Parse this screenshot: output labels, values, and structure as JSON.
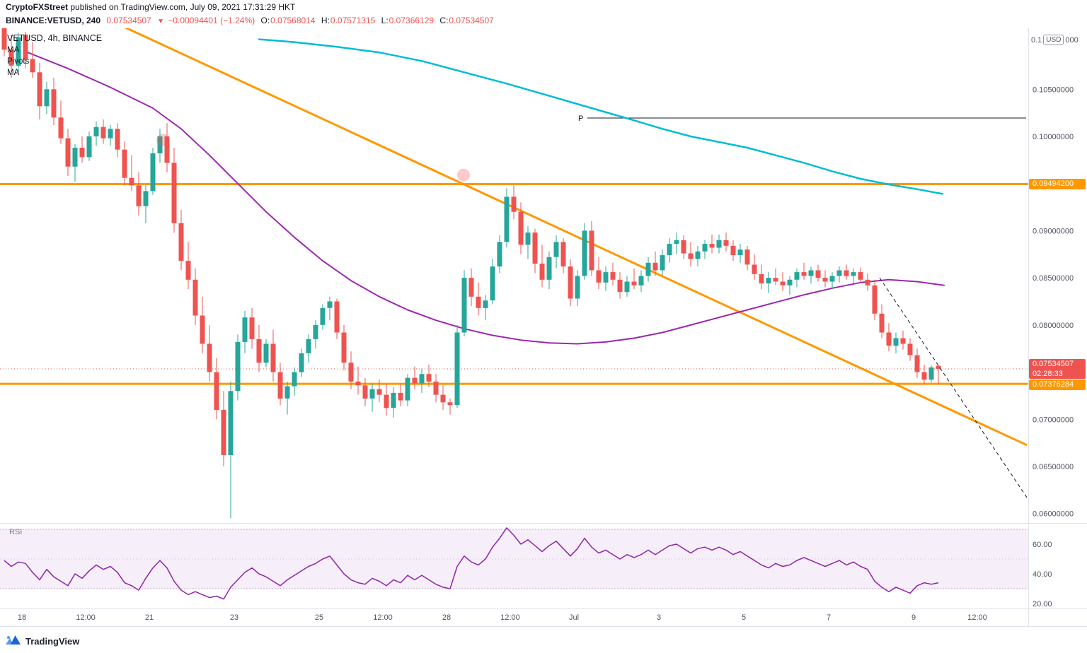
{
  "attribution": {
    "author": "CryptoFXStreet",
    "rest": " published on TradingView.com, July 09, 2021 17:31:29 HKT"
  },
  "symbol_bar": {
    "symbol": "BINANCE:VETUSD, 240",
    "last": "0.07534507",
    "arrow": "▼",
    "change": "−0.00094401 (−1.24%)",
    "o_label": "O:",
    "o": "0.07568014",
    "h_label": "H:",
    "h": "0.07571315",
    "l_label": "L:",
    "l": "0.07366129",
    "c_label": "C:",
    "c": "0.07534507"
  },
  "legend": {
    "title": "VETUSD, 4h, BINANCE",
    "items": [
      "MA",
      "Pivots",
      "MA"
    ]
  },
  "axis_chip": {
    "left": "0.1",
    "unit": "USD",
    "right": "000"
  },
  "badges": {
    "resistance": "0.09494200",
    "last_price": "0.07534507",
    "countdown": "02:28:33",
    "support": "0.07376284"
  },
  "rsi": {
    "label": "RSI"
  },
  "footer": {
    "brand": "TradingView"
  },
  "colors": {
    "up": "#26a69a",
    "down": "#ef5350",
    "cyan": "#00bcd4",
    "purple": "#9c27b0",
    "orange": "#ff9800",
    "rsi": "#8e24aa",
    "axis_text": "#50535e",
    "text": "#131722"
  },
  "chart_data": {
    "type": "candlestick",
    "symbol": "BINANCE:VETUSD",
    "interval": "4h",
    "title": "VETUSD, 4h, BINANCE",
    "first_index": -3,
    "first_candle_time": "2021-06-17 12:00",
    "candles": [
      [
        0.1118,
        0.1125,
        0.1085,
        0.1092
      ],
      [
        0.1092,
        0.1108,
        0.1062,
        0.1075
      ],
      [
        0.1075,
        0.111,
        0.1068,
        0.1105
      ],
      [
        0.1108,
        0.1111,
        0.1072,
        0.1082
      ],
      [
        0.1082,
        0.11,
        0.1062,
        0.1068
      ],
      [
        0.1068,
        0.1078,
        0.1018,
        0.1032
      ],
      [
        0.1032,
        0.1058,
        0.1024,
        0.105
      ],
      [
        0.105,
        0.1062,
        0.1012,
        0.102
      ],
      [
        0.102,
        0.1038,
        0.0992,
        0.0998
      ],
      [
        0.0998,
        0.1008,
        0.0958,
        0.0968
      ],
      [
        0.0968,
        0.0992,
        0.0952,
        0.0988
      ],
      [
        0.0988,
        0.1,
        0.0972,
        0.0978
      ],
      [
        0.0978,
        0.1005,
        0.0974,
        0.1
      ],
      [
        0.1,
        0.1016,
        0.099,
        0.101
      ],
      [
        0.101,
        0.1018,
        0.0992,
        0.0998
      ],
      [
        0.0998,
        0.1012,
        0.099,
        0.1008
      ],
      [
        0.1008,
        0.1014,
        0.0978,
        0.0986
      ],
      [
        0.0986,
        0.0995,
        0.0948,
        0.0956
      ],
      [
        0.0956,
        0.098,
        0.0942,
        0.0948
      ],
      [
        0.0948,
        0.0962,
        0.0916,
        0.0926
      ],
      [
        0.0926,
        0.0948,
        0.0908,
        0.0942
      ],
      [
        0.0942,
        0.0988,
        0.0938,
        0.0982
      ],
      [
        0.0982,
        0.1008,
        0.0972,
        0.1
      ],
      [
        0.1,
        0.1014,
        0.0962,
        0.0972
      ],
      [
        0.0972,
        0.0988,
        0.0898,
        0.0908
      ],
      [
        0.0908,
        0.0922,
        0.0858,
        0.0868
      ],
      [
        0.0868,
        0.0888,
        0.0838,
        0.0848
      ],
      [
        0.0848,
        0.086,
        0.08,
        0.081
      ],
      [
        0.081,
        0.083,
        0.077,
        0.078
      ],
      [
        0.078,
        0.08,
        0.074,
        0.075
      ],
      [
        0.075,
        0.0765,
        0.07,
        0.071
      ],
      [
        0.071,
        0.073,
        0.065,
        0.0662
      ],
      [
        0.0662,
        0.074,
        0.0595,
        0.073
      ],
      [
        0.073,
        0.079,
        0.072,
        0.0782
      ],
      [
        0.0782,
        0.0815,
        0.077,
        0.0808
      ],
      [
        0.0808,
        0.0818,
        0.0775,
        0.0785
      ],
      [
        0.0785,
        0.08,
        0.075,
        0.076
      ],
      [
        0.076,
        0.0785,
        0.0755,
        0.078
      ],
      [
        0.078,
        0.0795,
        0.074,
        0.075
      ],
      [
        0.075,
        0.076,
        0.0715,
        0.0722
      ],
      [
        0.0722,
        0.074,
        0.0705,
        0.0735
      ],
      [
        0.0735,
        0.0755,
        0.0725,
        0.075
      ],
      [
        0.075,
        0.0775,
        0.0745,
        0.077
      ],
      [
        0.077,
        0.079,
        0.076,
        0.0785
      ],
      [
        0.0785,
        0.0805,
        0.0775,
        0.08
      ],
      [
        0.08,
        0.0822,
        0.0795,
        0.0818
      ],
      [
        0.0818,
        0.083,
        0.0805,
        0.0825
      ],
      [
        0.0825,
        0.0828,
        0.0785,
        0.0792
      ],
      [
        0.0792,
        0.08,
        0.0752,
        0.076
      ],
      [
        0.076,
        0.0772,
        0.0732,
        0.074
      ],
      [
        0.074,
        0.0756,
        0.0726,
        0.0736
      ],
      [
        0.0736,
        0.0744,
        0.0714,
        0.0722
      ],
      [
        0.0722,
        0.0738,
        0.0708,
        0.0732
      ],
      [
        0.0732,
        0.0742,
        0.0718,
        0.0726
      ],
      [
        0.0726,
        0.0738,
        0.0704,
        0.0712
      ],
      [
        0.0712,
        0.0734,
        0.0702,
        0.0728
      ],
      [
        0.0728,
        0.0738,
        0.0714,
        0.072
      ],
      [
        0.072,
        0.0748,
        0.0714,
        0.0744
      ],
      [
        0.0744,
        0.0756,
        0.0732,
        0.0738
      ],
      [
        0.0738,
        0.0754,
        0.0728,
        0.0748
      ],
      [
        0.0748,
        0.0758,
        0.0734,
        0.074
      ],
      [
        0.074,
        0.0748,
        0.0718,
        0.0726
      ],
      [
        0.0726,
        0.0736,
        0.071,
        0.0718
      ],
      [
        0.0718,
        0.0722,
        0.0705,
        0.0715
      ],
      [
        0.0715,
        0.08,
        0.0712,
        0.0792
      ],
      [
        0.0792,
        0.0858,
        0.0788,
        0.085
      ],
      [
        0.085,
        0.086,
        0.082,
        0.083
      ],
      [
        0.083,
        0.0845,
        0.081,
        0.0818
      ],
      [
        0.0818,
        0.0832,
        0.0805,
        0.0826
      ],
      [
        0.0826,
        0.087,
        0.0822,
        0.0862
      ],
      [
        0.0862,
        0.0895,
        0.0855,
        0.0888
      ],
      [
        0.0888,
        0.0945,
        0.0882,
        0.0936
      ],
      [
        0.0936,
        0.0948,
        0.0912,
        0.092
      ],
      [
        0.092,
        0.093,
        0.0875,
        0.0885
      ],
      [
        0.0885,
        0.0905,
        0.087,
        0.0898
      ],
      [
        0.0898,
        0.0902,
        0.0855,
        0.0865
      ],
      [
        0.0865,
        0.0885,
        0.084,
        0.0848
      ],
      [
        0.0848,
        0.0878,
        0.0838,
        0.0872
      ],
      [
        0.0872,
        0.0895,
        0.086,
        0.0888
      ],
      [
        0.0888,
        0.0892,
        0.0855,
        0.0862
      ],
      [
        0.0862,
        0.087,
        0.082,
        0.0828
      ],
      [
        0.0828,
        0.0858,
        0.082,
        0.0852
      ],
      [
        0.0852,
        0.0908,
        0.0848,
        0.09
      ],
      [
        0.09,
        0.091,
        0.0852,
        0.0858
      ],
      [
        0.0858,
        0.0872,
        0.0838,
        0.0845
      ],
      [
        0.0845,
        0.0862,
        0.0836,
        0.0856
      ],
      [
        0.0856,
        0.0866,
        0.0842,
        0.0848
      ],
      [
        0.0848,
        0.0856,
        0.0828,
        0.0835
      ],
      [
        0.0835,
        0.0852,
        0.083,
        0.0846
      ],
      [
        0.0846,
        0.086,
        0.0838,
        0.0842
      ],
      [
        0.0842,
        0.0858,
        0.0835,
        0.0852
      ],
      [
        0.0852,
        0.0872,
        0.0846,
        0.0866
      ],
      [
        0.0866,
        0.0878,
        0.0852,
        0.0858
      ],
      [
        0.0858,
        0.088,
        0.0852,
        0.0874
      ],
      [
        0.0874,
        0.0892,
        0.0866,
        0.0886
      ],
      [
        0.0886,
        0.0898,
        0.0875,
        0.089
      ],
      [
        0.089,
        0.0895,
        0.087,
        0.0876
      ],
      [
        0.0876,
        0.0888,
        0.0862,
        0.087
      ],
      [
        0.087,
        0.0884,
        0.0862,
        0.0878
      ],
      [
        0.0878,
        0.089,
        0.087,
        0.0886
      ],
      [
        0.0886,
        0.0896,
        0.0876,
        0.0882
      ],
      [
        0.0882,
        0.0896,
        0.0876,
        0.089
      ],
      [
        0.089,
        0.0898,
        0.0878,
        0.0884
      ],
      [
        0.0884,
        0.089,
        0.0868,
        0.0874
      ],
      [
        0.0874,
        0.0886,
        0.0866,
        0.088
      ],
      [
        0.088,
        0.0884,
        0.0858,
        0.0864
      ],
      [
        0.0864,
        0.0875,
        0.0848,
        0.0854
      ],
      [
        0.0854,
        0.0864,
        0.0838,
        0.0844
      ],
      [
        0.0844,
        0.0856,
        0.0834,
        0.085
      ],
      [
        0.085,
        0.086,
        0.0842,
        0.0846
      ],
      [
        0.0846,
        0.0856,
        0.0836,
        0.0842
      ],
      [
        0.0842,
        0.0852,
        0.0832,
        0.0848
      ],
      [
        0.0848,
        0.086,
        0.084,
        0.0856
      ],
      [
        0.0856,
        0.0866,
        0.0848,
        0.0852
      ],
      [
        0.0852,
        0.0862,
        0.0844,
        0.0858
      ],
      [
        0.0858,
        0.0864,
        0.0846,
        0.085
      ],
      [
        0.085,
        0.0858,
        0.084,
        0.0846
      ],
      [
        0.0846,
        0.0856,
        0.0838,
        0.0852
      ],
      [
        0.0852,
        0.0862,
        0.0845,
        0.0858
      ],
      [
        0.0858,
        0.0864,
        0.0848,
        0.0852
      ],
      [
        0.0852,
        0.086,
        0.0844,
        0.0856
      ],
      [
        0.0856,
        0.0861,
        0.0845,
        0.0848
      ],
      [
        0.0848,
        0.0855,
        0.0836,
        0.0842
      ],
      [
        0.0842,
        0.0848,
        0.0805,
        0.0812
      ],
      [
        0.0812,
        0.0822,
        0.0786,
        0.0792
      ],
      [
        0.0792,
        0.0802,
        0.0772,
        0.0778
      ],
      [
        0.0778,
        0.0792,
        0.077,
        0.0786
      ],
      [
        0.0786,
        0.0794,
        0.0774,
        0.078
      ],
      [
        0.078,
        0.0786,
        0.0762,
        0.0768
      ],
      [
        0.0768,
        0.0775,
        0.0744,
        0.075
      ],
      [
        0.075,
        0.0758,
        0.0737,
        0.0742
      ],
      [
        0.0742,
        0.0757,
        0.0739,
        0.0755
      ],
      [
        0.07568,
        0.07571,
        0.07366,
        0.07535
      ]
    ],
    "rsi_values": [
      49,
      45,
      48,
      47,
      41,
      36,
      43,
      38,
      35,
      32,
      40,
      37,
      42,
      46,
      43,
      45,
      41,
      34,
      32,
      29,
      37,
      44,
      49,
      44,
      35,
      29,
      26,
      28,
      26,
      24,
      25,
      23,
      31,
      36,
      41,
      44,
      40,
      38,
      35,
      32,
      36,
      39,
      42,
      45,
      47,
      50,
      52,
      46,
      40,
      36,
      34,
      33,
      37,
      35,
      32,
      36,
      34,
      39,
      36,
      39,
      36,
      33,
      31,
      30,
      45,
      52,
      48,
      46,
      50,
      58,
      64,
      71,
      66,
      60,
      63,
      59,
      55,
      59,
      62,
      57,
      52,
      57,
      64,
      58,
      54,
      56,
      53,
      50,
      53,
      51,
      53,
      56,
      53,
      56,
      59,
      60,
      57,
      54,
      57,
      58,
      56,
      58,
      56,
      53,
      55,
      52,
      49,
      46,
      44,
      47,
      45,
      46,
      49,
      51,
      49,
      47,
      45,
      47,
      49,
      46,
      48,
      45,
      43,
      35,
      31,
      28,
      31,
      29,
      27,
      32,
      34,
      33,
      34
    ],
    "ma_cyan": [
      [
        33,
        0.1103
      ],
      [
        38,
        0.11
      ],
      [
        44,
        0.1095
      ],
      [
        50,
        0.1089
      ],
      [
        56,
        0.108
      ],
      [
        62,
        0.1068
      ],
      [
        68,
        0.1056
      ],
      [
        74,
        0.1043
      ],
      [
        80,
        0.103
      ],
      [
        86,
        0.1017
      ],
      [
        90,
        0.1008
      ],
      [
        94,
        0.1
      ],
      [
        98,
        0.0994
      ],
      [
        102,
        0.0988
      ],
      [
        106,
        0.098
      ],
      [
        110,
        0.0972
      ],
      [
        114,
        0.0963
      ],
      [
        118,
        0.0955
      ],
      [
        122,
        0.0949
      ],
      [
        126,
        0.0944
      ],
      [
        129.6,
        0.0939
      ]
    ],
    "ma_purple": [
      [
        0,
        0.109
      ],
      [
        6,
        0.1072
      ],
      [
        12,
        0.1052
      ],
      [
        18,
        0.103
      ],
      [
        22,
        0.1008
      ],
      [
        26,
        0.098
      ],
      [
        30,
        0.095
      ],
      [
        34,
        0.092
      ],
      [
        38,
        0.0893
      ],
      [
        42,
        0.0868
      ],
      [
        46,
        0.0847
      ],
      [
        50,
        0.083
      ],
      [
        54,
        0.0816
      ],
      [
        58,
        0.0805
      ],
      [
        62,
        0.0796
      ],
      [
        66,
        0.0789
      ],
      [
        70,
        0.0784
      ],
      [
        74,
        0.0781
      ],
      [
        78,
        0.078
      ],
      [
        82,
        0.0782
      ],
      [
        86,
        0.0786
      ],
      [
        90,
        0.0792
      ],
      [
        94,
        0.08
      ],
      [
        98,
        0.0808
      ],
      [
        102,
        0.0816
      ],
      [
        106,
        0.0824
      ],
      [
        110,
        0.0832
      ],
      [
        114,
        0.0839
      ],
      [
        118,
        0.0845
      ],
      [
        122,
        0.0848
      ],
      [
        126,
        0.0846
      ],
      [
        129.8,
        0.0842
      ]
    ],
    "levels": {
      "resistance": 0.094942,
      "support": 0.0737628,
      "last": 0.07534507
    },
    "pivot": {
      "p": 0.10195,
      "from_i": 79.4,
      "label": "P"
    },
    "trendline_orange": [
      [
        -3.6,
        0.1177
      ],
      [
        141.4,
        0.0673
      ]
    ],
    "dashed_projection": [
      [
        120.7,
        0.085
      ],
      [
        141.6,
        0.0616
      ]
    ],
    "markers": [
      {
        "i": 19.4,
        "p": 0.0996
      },
      {
        "i": 61.9,
        "p": 0.0959
      }
    ],
    "y_axis": {
      "range": [
        0.0592,
        0.1111
      ],
      "ticks": [
        {
          "v": 0.105,
          "label": "0.10500000"
        },
        {
          "v": 0.1,
          "label": "0.10000000"
        },
        {
          "v": 0.09,
          "label": "0.09000000"
        },
        {
          "v": 0.085,
          "label": "0.08500000"
        },
        {
          "v": 0.08,
          "label": "0.08000000"
        },
        {
          "v": 0.07,
          "label": "0.07000000"
        },
        {
          "v": 0.065,
          "label": "0.06500000"
        },
        {
          "v": 0.06,
          "label": "0.06000000"
        }
      ]
    },
    "x_axis": {
      "ticks": [
        {
          "label": "18",
          "d": 0
        },
        {
          "label": "12:00",
          "d": 1.5
        },
        {
          "label": "21",
          "d": 3
        },
        {
          "label": "23",
          "d": 5
        },
        {
          "label": "25",
          "d": 7
        },
        {
          "label": "12:00",
          "d": 8.5
        },
        {
          "label": "28",
          "d": 10
        },
        {
          "label": "12:00",
          "d": 11.5
        },
        {
          "label": "Jul",
          "d": 13
        },
        {
          "label": "3",
          "d": 15
        },
        {
          "label": "5",
          "d": 17
        },
        {
          "label": "7",
          "d": 19
        },
        {
          "label": "9",
          "d": 21
        },
        {
          "label": "12:00",
          "d": 22.5
        }
      ]
    },
    "rsi_axis": {
      "band": [
        30,
        70
      ],
      "ticks": [
        {
          "v": 60,
          "label": "60.00"
        },
        {
          "v": 40,
          "label": "40.00"
        },
        {
          "v": 20,
          "label": "20.00"
        }
      ]
    }
  }
}
